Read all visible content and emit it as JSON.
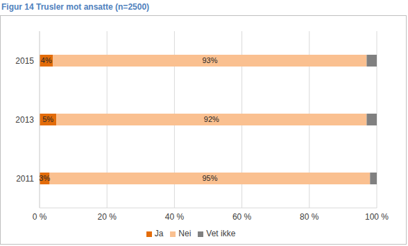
{
  "chart_data": {
    "type": "bar",
    "title": "Figur 14 Trusler mot ansatte (n=2500)",
    "orientation": "horizontal",
    "stacked": true,
    "categories": [
      "2015",
      "2013",
      "2011"
    ],
    "series": [
      {
        "name": "Ja",
        "color": "#e36c09",
        "values": [
          4,
          5,
          3
        ],
        "value_labels": [
          "4%",
          "5%",
          "3%"
        ]
      },
      {
        "name": "Nei",
        "color": "#fac090",
        "values": [
          93,
          92,
          95
        ],
        "value_labels": [
          "93%",
          "92%",
          "95%"
        ]
      },
      {
        "name": "Vet ikke",
        "color": "#808080",
        "values": [
          3,
          3,
          2
        ]
      }
    ],
    "xlim": [
      0,
      100
    ],
    "xticks": [
      {
        "value": 0,
        "label": "0 %"
      },
      {
        "value": 20,
        "label": "20 %"
      },
      {
        "value": 40,
        "label": "40 %"
      },
      {
        "value": 60,
        "label": "60 %"
      },
      {
        "value": 80,
        "label": "80 %"
      },
      {
        "value": 100,
        "label": "100 %"
      }
    ],
    "grid": true,
    "legend": "bottom",
    "data_labels": true
  }
}
